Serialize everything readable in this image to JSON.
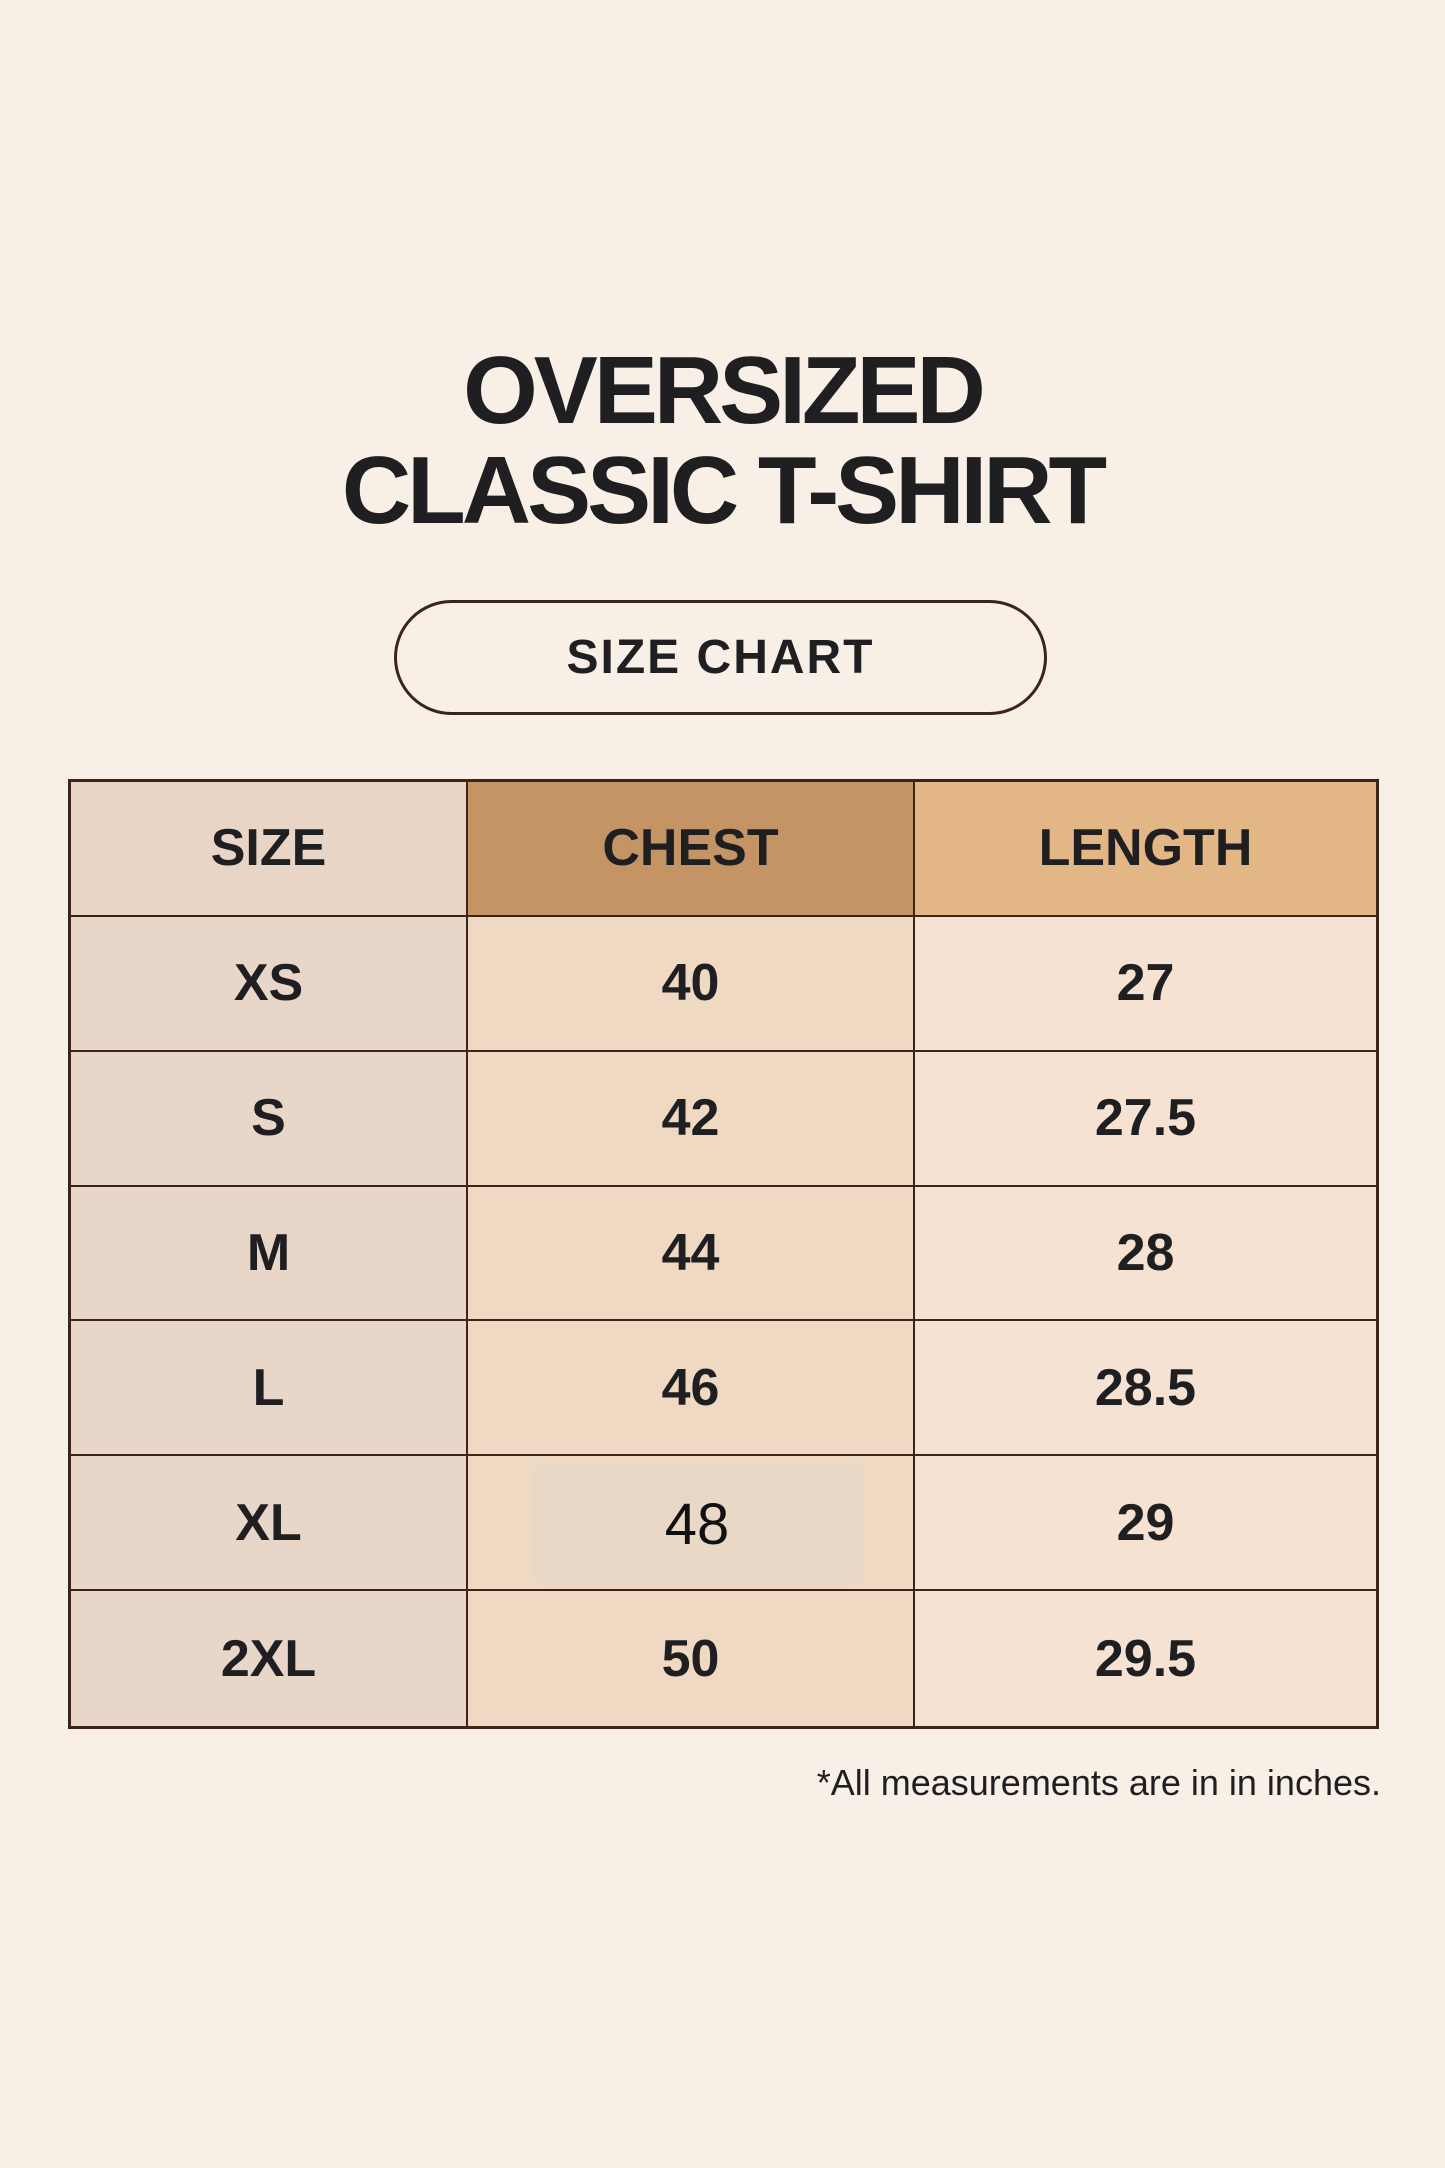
{
  "title": {
    "line1": "OVERSIZED",
    "line2": "CLASSIC T-SHIRT"
  },
  "badge": "SIZE CHART",
  "table": {
    "headers": [
      "SIZE",
      "CHEST",
      "LENGTH"
    ],
    "rows": [
      [
        "XS",
        "40",
        "27"
      ],
      [
        "S",
        "42",
        "27.5"
      ],
      [
        "M",
        "44",
        "28"
      ],
      [
        "L",
        "46",
        "28.5"
      ],
      [
        "XL",
        "48",
        "29"
      ],
      [
        "2XL",
        "50",
        "29.5"
      ]
    ]
  },
  "footnote": "*All measurements are in in inches.",
  "colors": {
    "background": "#f8efe6",
    "size_header": "#e8d5c6",
    "chest_header": "#c49465",
    "length_header": "#e3b686",
    "border": "#3b2418"
  }
}
